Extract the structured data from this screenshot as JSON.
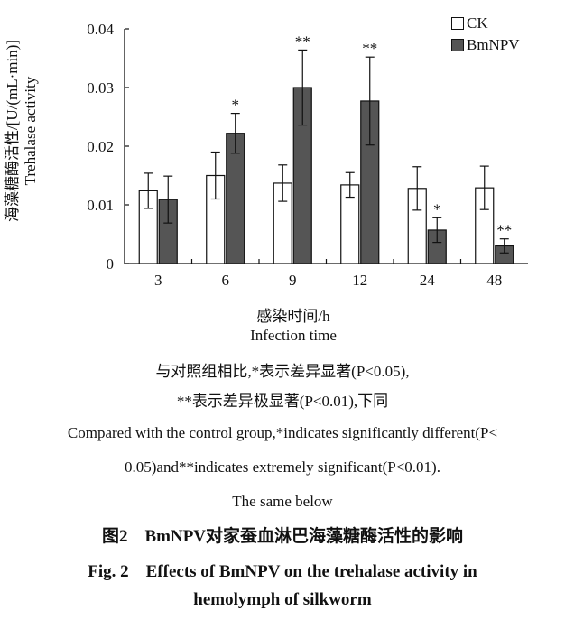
{
  "chart_data": {
    "type": "bar",
    "categories": [
      "3",
      "6",
      "9",
      "12",
      "24",
      "48"
    ],
    "series": [
      {
        "name": "CK",
        "color": "#ffffff",
        "values": [
          0.0124,
          0.015,
          0.0137,
          0.0134,
          0.0128,
          0.0129
        ],
        "errors": [
          0.003,
          0.004,
          0.0031,
          0.0021,
          0.0037,
          0.0037
        ],
        "significance": [
          "",
          "",
          "",
          "",
          "",
          ""
        ]
      },
      {
        "name": "BmNPV",
        "color": "#555555",
        "values": [
          0.0109,
          0.0222,
          0.03,
          0.0277,
          0.0057,
          0.003
        ],
        "errors": [
          0.004,
          0.0034,
          0.0064,
          0.0075,
          0.0021,
          0.0012
        ],
        "significance": [
          "",
          "*",
          "**",
          "**",
          "*",
          "**"
        ]
      }
    ],
    "y_ticks": [
      "0",
      "0.01",
      "0.02",
      "0.03",
      "0.04"
    ],
    "ylim": [
      0,
      0.04
    ],
    "ylabel_cn": "海藻糖酶活性/[U/(mL·min)]",
    "ylabel_en": "Trehalase activity",
    "xlabel_cn": "感染时间/h",
    "xlabel_en": "Infection time",
    "legend_position": "top-right"
  },
  "notes": {
    "line1": "与对照组相比,*表示差异显著(P<0.05),",
    "line2": "**表示差异极显著(P<0.01),下同",
    "line3": "Compared with the control group,*indicates significantly different(P<",
    "line4": "0.05)and**indicates extremely significant(P<0.01).",
    "line5": "The same below"
  },
  "caption": {
    "cn": "图2　BmNPV对家蚕血淋巴海藻糖酶活性的影响",
    "en_line1": "Fig. 2　Effects of BmNPV on the trehalase activity in",
    "en_line2": "hemolymph of silkworm"
  }
}
